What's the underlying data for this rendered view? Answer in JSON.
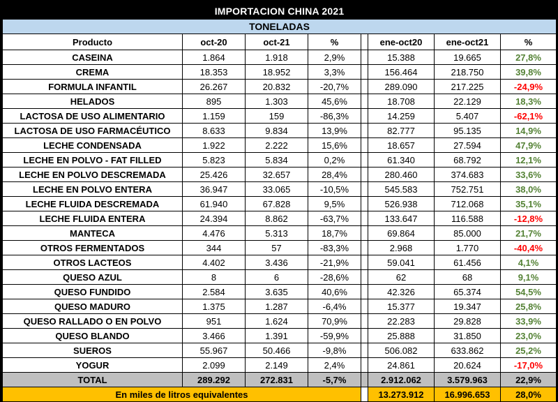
{
  "title": "IMPORTACION CHINA 2021",
  "subtitle": "TONELADAS",
  "colors": {
    "title_bg": "#000000",
    "subtitle_bg": "#BDD7EE",
    "total_bg": "#BFBFBF",
    "equivalents_bg": "#FFC000",
    "green": "#548235",
    "red": "#FF0000"
  },
  "chart_data": {
    "type": "table",
    "title": "IMPORTACION CHINA 2021",
    "subtitle": "TONELADAS",
    "columns": [
      "Producto",
      "oct-20",
      "oct-21",
      "%",
      "ene-oct20",
      "ene-oct21",
      "%"
    ],
    "rows": [
      {
        "producto": "CASEINA",
        "oct20": "1.864",
        "oct21": "1.918",
        "pct1": "2,9%",
        "ene20": "15.388",
        "ene21": "19.665",
        "pct2": "27,8%"
      },
      {
        "producto": "CREMA",
        "oct20": "18.353",
        "oct21": "18.952",
        "pct1": "3,3%",
        "ene20": "156.464",
        "ene21": "218.750",
        "pct2": "39,8%"
      },
      {
        "producto": "FORMULA INFANTIL",
        "oct20": "26.267",
        "oct21": "20.832",
        "pct1": "-20,7%",
        "ene20": "289.090",
        "ene21": "217.225",
        "pct2": "-24,9%"
      },
      {
        "producto": "HELADOS",
        "oct20": "895",
        "oct21": "1.303",
        "pct1": "45,6%",
        "ene20": "18.708",
        "ene21": "22.129",
        "pct2": "18,3%"
      },
      {
        "producto": "LACTOSA DE USO ALIMENTARIO",
        "oct20": "1.159",
        "oct21": "159",
        "pct1": "-86,3%",
        "ene20": "14.259",
        "ene21": "5.407",
        "pct2": "-62,1%"
      },
      {
        "producto": "LACTOSA DE USO FARMACÉUTICO",
        "oct20": "8.633",
        "oct21": "9.834",
        "pct1": "13,9%",
        "ene20": "82.777",
        "ene21": "95.135",
        "pct2": "14,9%"
      },
      {
        "producto": "LECHE CONDENSADA",
        "oct20": "1.922",
        "oct21": "2.222",
        "pct1": "15,6%",
        "ene20": "18.657",
        "ene21": "27.594",
        "pct2": "47,9%"
      },
      {
        "producto": "LECHE EN POLVO - FAT FILLED",
        "oct20": "5.823",
        "oct21": "5.834",
        "pct1": "0,2%",
        "ene20": "61.340",
        "ene21": "68.792",
        "pct2": "12,1%"
      },
      {
        "producto": "LECHE EN POLVO DESCREMADA",
        "oct20": "25.426",
        "oct21": "32.657",
        "pct1": "28,4%",
        "ene20": "280.460",
        "ene21": "374.683",
        "pct2": "33,6%"
      },
      {
        "producto": "LECHE EN POLVO ENTERA",
        "oct20": "36.947",
        "oct21": "33.065",
        "pct1": "-10,5%",
        "ene20": "545.583",
        "ene21": "752.751",
        "pct2": "38,0%"
      },
      {
        "producto": "LECHE FLUIDA DESCREMADA",
        "oct20": "61.940",
        "oct21": "67.828",
        "pct1": "9,5%",
        "ene20": "526.938",
        "ene21": "712.068",
        "pct2": "35,1%"
      },
      {
        "producto": "LECHE FLUIDA ENTERA",
        "oct20": "24.394",
        "oct21": "8.862",
        "pct1": "-63,7%",
        "ene20": "133.647",
        "ene21": "116.588",
        "pct2": "-12,8%"
      },
      {
        "producto": "MANTECA",
        "oct20": "4.476",
        "oct21": "5.313",
        "pct1": "18,7%",
        "ene20": "69.864",
        "ene21": "85.000",
        "pct2": "21,7%"
      },
      {
        "producto": "OTROS FERMENTADOS",
        "oct20": "344",
        "oct21": "57",
        "pct1": "-83,3%",
        "ene20": "2.968",
        "ene21": "1.770",
        "pct2": "-40,4%"
      },
      {
        "producto": "OTROS LACTEOS",
        "oct20": "4.402",
        "oct21": "3.436",
        "pct1": "-21,9%",
        "ene20": "59.041",
        "ene21": "61.456",
        "pct2": "4,1%"
      },
      {
        "producto": "QUESO AZUL",
        "oct20": "8",
        "oct21": "6",
        "pct1": "-28,6%",
        "ene20": "62",
        "ene21": "68",
        "pct2": "9,1%"
      },
      {
        "producto": "QUESO FUNDIDO",
        "oct20": "2.584",
        "oct21": "3.635",
        "pct1": "40,6%",
        "ene20": "42.326",
        "ene21": "65.374",
        "pct2": "54,5%"
      },
      {
        "producto": "QUESO MADURO",
        "oct20": "1.375",
        "oct21": "1.287",
        "pct1": "-6,4%",
        "ene20": "15.377",
        "ene21": "19.347",
        "pct2": "25,8%"
      },
      {
        "producto": "QUESO RALLADO O EN POLVO",
        "oct20": "951",
        "oct21": "1.624",
        "pct1": "70,9%",
        "ene20": "22.283",
        "ene21": "29.828",
        "pct2": "33,9%"
      },
      {
        "producto": "QUESO BLANDO",
        "oct20": "3.466",
        "oct21": "1.391",
        "pct1": "-59,9%",
        "ene20": "25.888",
        "ene21": "31.850",
        "pct2": "23,0%"
      },
      {
        "producto": "SUEROS",
        "oct20": "55.967",
        "oct21": "50.466",
        "pct1": "-9,8%",
        "ene20": "506.082",
        "ene21": "633.862",
        "pct2": "25,2%"
      },
      {
        "producto": "YOGUR",
        "oct20": "2.099",
        "oct21": "2.149",
        "pct1": "2,4%",
        "ene20": "24.861",
        "ene21": "20.624",
        "pct2": "-17,0%"
      }
    ],
    "total_row": {
      "label": "TOTAL",
      "oct20": "289.292",
      "oct21": "272.831",
      "pct1": "-5,7%",
      "ene20": "2.912.062",
      "ene21": "3.579.963",
      "pct2": "22,9%"
    },
    "equivalents_row": {
      "label": "En miles de litros equivalentes",
      "ene20": "13.273.912",
      "ene21": "16.996.653",
      "pct2": "28,0%"
    }
  }
}
